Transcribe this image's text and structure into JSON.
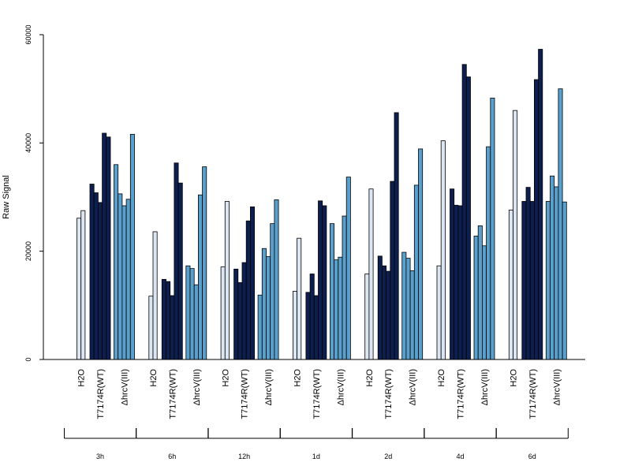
{
  "chart_data": {
    "type": "bar",
    "ylabel": "Raw Signal",
    "ylim": [
      0,
      60000
    ],
    "yticks": [
      "0",
      "20000",
      "40000",
      "60000"
    ],
    "grid": false,
    "legend": "none",
    "colors": {
      "H2O": "#dce6f2",
      "T7174R(WT)": "#0d1f4f",
      "ΔhrcV(III)": "#5aa0cc"
    },
    "treatments": [
      "H2O",
      "T7174R(WT)",
      "ΔhrcV(III)"
    ],
    "groups": [
      {
        "label": "3h",
        "series": {
          "H2O": [
            26100,
            27500
          ],
          "T7174R(WT)": [
            32400,
            30800,
            29000,
            41800,
            41100
          ],
          "ΔhrcV(III)": [
            36000,
            30600,
            28400,
            29600,
            41600
          ]
        }
      },
      {
        "label": "6h",
        "series": {
          "H2O": [
            11700,
            23600
          ],
          "T7174R(WT)": [
            14800,
            14400,
            11800,
            36300,
            32600
          ],
          "ΔhrcV(III)": [
            17300,
            16800,
            13800,
            30400,
            35600
          ]
        }
      },
      {
        "label": "12h",
        "series": {
          "H2O": [
            17100,
            29200
          ],
          "T7174R(WT)": [
            16700,
            14200,
            17900,
            25600,
            28200
          ],
          "ΔhrcV(III)": [
            11900,
            20500,
            19000,
            25100,
            29500
          ]
        }
      },
      {
        "label": "1d",
        "series": {
          "H2O": [
            12600,
            22400
          ],
          "T7174R(WT)": [
            12400,
            15800,
            11800,
            29300,
            28400
          ],
          "ΔhrcV(III)": [
            25100,
            18400,
            18900,
            26500,
            33700
          ]
        }
      },
      {
        "label": "2d",
        "series": {
          "H2O": [
            15800,
            31500
          ],
          "T7174R(WT)": [
            19100,
            17300,
            16300,
            32900,
            45600
          ],
          "ΔhrcV(III)": [
            19800,
            18700,
            16400,
            32200,
            38900
          ]
        }
      },
      {
        "label": "4d",
        "series": {
          "H2O": [
            17300,
            40400
          ],
          "T7174R(WT)": [
            31500,
            28500,
            28400,
            54500,
            52200
          ],
          "ΔhrcV(III)": [
            22800,
            24700,
            21000,
            39300,
            48300
          ]
        }
      },
      {
        "label": "6d",
        "series": {
          "H2O": [
            27600,
            46000
          ],
          "T7174R(WT)": [
            29200,
            31800,
            29200,
            51700,
            57300
          ],
          "ΔhrcV(III)": [
            29200,
            33900,
            31900,
            50000,
            29100
          ]
        }
      }
    ]
  }
}
